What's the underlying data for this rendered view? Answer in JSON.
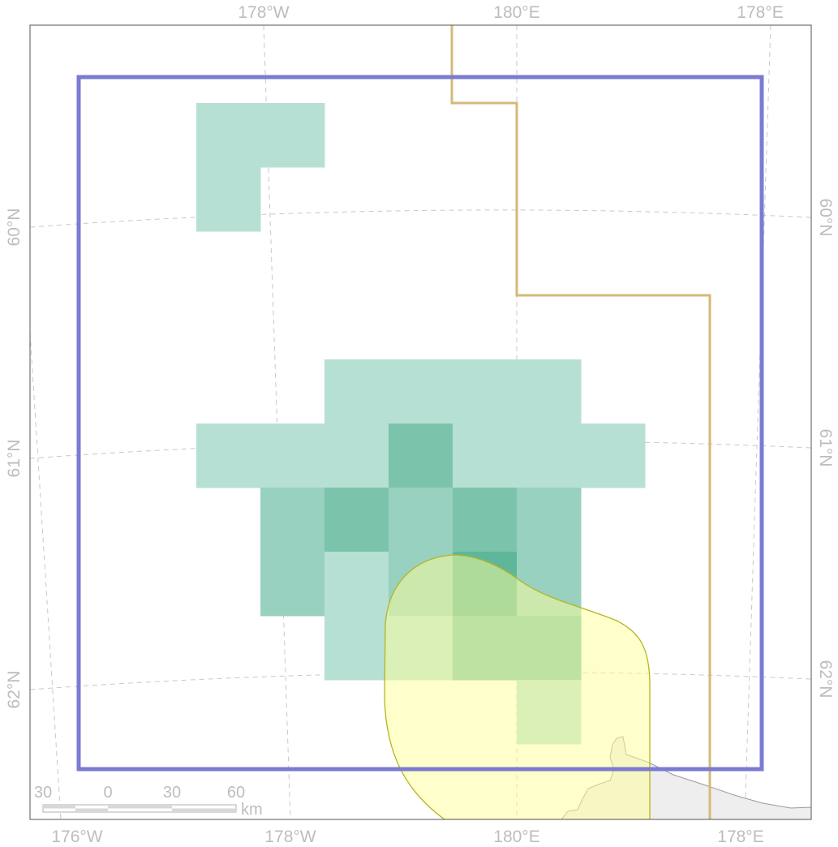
{
  "axis_labels": {
    "top": [
      "178°W",
      "180°E",
      "178°E"
    ],
    "bottom": [
      "176°W",
      "178°W",
      "180°E",
      "178°E"
    ],
    "left": [
      "60°N",
      "61°N",
      "62°N"
    ],
    "right": [
      "60°N",
      "61°N",
      "62°N"
    ]
  },
  "scale_bar": {
    "ticks": [
      "30",
      "0",
      "30",
      "60"
    ],
    "unit": "km"
  },
  "colors": {
    "frame": "#555555",
    "graticule": "#c8c8c8",
    "study_area_border": "#7b7bd1",
    "boundary_line": "#d4b97a",
    "cell_level_1": "#b7e0d4",
    "cell_level_2": "#98d1bf",
    "cell_level_3": "#7bc4ab",
    "cell_level_4": "#5eb79a",
    "yellow_region_fill": "#ffffc0",
    "yellow_region_stroke": "#b5b520",
    "land": "#eeeeee",
    "land_stroke": "#9a9a9a"
  },
  "grid_cells": [
    {
      "col": 0,
      "row": 0,
      "level": 1
    },
    {
      "col": 1,
      "row": 0,
      "level": 1
    },
    {
      "col": 0,
      "row": 1,
      "level": 1
    },
    {
      "col": 2,
      "row": 4,
      "level": 1
    },
    {
      "col": 3,
      "row": 4,
      "level": 1
    },
    {
      "col": 4,
      "row": 4,
      "level": 1
    },
    {
      "col": 5,
      "row": 4,
      "level": 1
    },
    {
      "col": 0,
      "row": 5,
      "level": 1
    },
    {
      "col": 1,
      "row": 5,
      "level": 1
    },
    {
      "col": 2,
      "row": 5,
      "level": 1
    },
    {
      "col": 3,
      "row": 5,
      "level": 3
    },
    {
      "col": 4,
      "row": 5,
      "level": 1
    },
    {
      "col": 5,
      "row": 5,
      "level": 1
    },
    {
      "col": 6,
      "row": 5,
      "level": 1
    },
    {
      "col": 1,
      "row": 6,
      "level": 2
    },
    {
      "col": 2,
      "row": 6,
      "level": 3
    },
    {
      "col": 3,
      "row": 6,
      "level": 2
    },
    {
      "col": 4,
      "row": 6,
      "level": 3
    },
    {
      "col": 5,
      "row": 6,
      "level": 2
    },
    {
      "col": 1,
      "row": 7,
      "level": 2
    },
    {
      "col": 2,
      "row": 7,
      "level": 1
    },
    {
      "col": 3,
      "row": 7,
      "level": 2
    },
    {
      "col": 4,
      "row": 7,
      "level": 4
    },
    {
      "col": 5,
      "row": 7,
      "level": 2
    },
    {
      "col": 2,
      "row": 8,
      "level": 1
    },
    {
      "col": 3,
      "row": 8,
      "level": 1
    },
    {
      "col": 4,
      "row": 8,
      "level": 3
    },
    {
      "col": 5,
      "row": 8,
      "level": 3
    },
    {
      "col": 5,
      "row": 9,
      "level": 1
    }
  ]
}
